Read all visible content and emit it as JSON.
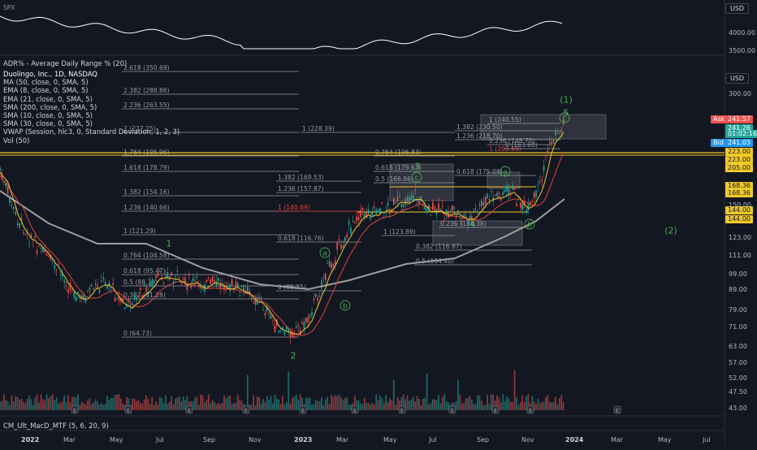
{
  "top_panel": {
    "label": "SPX",
    "currency": "USD",
    "ticks": [
      "4000.00",
      "3500.00"
    ]
  },
  "adr_label": "ADR% - Average Daily Range % (20)",
  "legend": [
    "Duolingo, Inc., 1D, NASDAQ",
    "MA (50, close, 0, SMA, 5)",
    "EMA (8, close, 0, SMA, 5)",
    "EMA (21, close, 0, SMA, 5)",
    "SMA (200, close, 0, SMA, 5)",
    "SMA (10, close, 0, SMA, 5)",
    "SMA (30, close, 0, SMA, 5)",
    "VWAP (Session, hlc3, 0, Standard Deviation, 1, 2, 3)",
    "Vol (50)"
  ],
  "macd_label": "CM_Ult_MacD_MTF (5, 6, 20, 9)",
  "currency": "USD",
  "price_tags": [
    {
      "text": "Ask",
      "value": "241.57",
      "color": "#ef5350"
    },
    {
      "text": "",
      "value": "241.26",
      "color": "#26a69a"
    },
    {
      "text": "",
      "value": "01:02:16",
      "color": "#26a69a"
    },
    {
      "text": "Bid",
      "value": "241.03",
      "color": "#2196f3"
    },
    {
      "text": "",
      "value": "223.00",
      "color": "#f0c929"
    },
    {
      "text": "",
      "value": "223.00",
      "color": "#f0c929"
    },
    {
      "text": "",
      "value": "205.00",
      "color": "#f0c929"
    },
    {
      "text": "",
      "value": "168.36",
      "color": "#f0c929"
    },
    {
      "text": "",
      "value": "168.36",
      "color": "#f0c929"
    },
    {
      "text": "",
      "value": "144.00",
      "color": "#f0c929"
    },
    {
      "text": "",
      "value": "144.00",
      "color": "#f0c929"
    }
  ],
  "chart_data": {
    "type": "candlestick",
    "title": "Duolingo, Inc., 1D, NASDAQ",
    "y_scale": "log",
    "y_ticks": [
      "300.00",
      "150.00",
      "123.00",
      "111.00",
      "99.00",
      "89.00",
      "79.00",
      "71.00",
      "63.00",
      "57.00",
      "52.00",
      "47.50",
      "43.00"
    ],
    "x_ticks": [
      "2022",
      "Mar",
      "May",
      "Jul",
      "Sep",
      "Nov",
      "2023",
      "Mar",
      "May",
      "Jul",
      "Sep",
      "Nov",
      "2024",
      "Mar",
      "May",
      "Jul"
    ],
    "horizontal_levels": [
      223.0,
      205.0,
      168.36,
      144.0
    ],
    "wave_labels": [
      "1",
      "2",
      "3",
      "4",
      "5",
      "(1)",
      "(2)",
      "a",
      "b",
      "c"
    ],
    "fib_labels": [
      "2.618 (350.69)",
      "2.382 (288.86)",
      "2.236 (263.55)",
      "2 (227.25)",
      "1.764 (195.96)",
      "1.618 (178.79)",
      "1.382 (154.16)",
      "1.236 (140.66)",
      "1 (121.29)",
      "0.764 (104.58)",
      "0.618 (95.47)",
      "0.5 (88.33)",
      "0.382 (81.28)",
      "0 (64.73)",
      "1 (228.39)",
      "0.764 (196.83)",
      "0.618 (179.63)",
      "0.5 (166.86)",
      "1.382 (169.53)",
      "1.236 (157.87)",
      "1 (140.69)",
      "0.618 (116.76)",
      "0 (85.35)",
      "1 (123.89)",
      "0.618 (175.08)",
      "0.236 (134.38)",
      "0.382 (116.87)",
      "0.5 (104.40)",
      "0.236 (148.70)",
      "1 (240.55)",
      "1.382 (230.50)",
      "1.236 (218.70)",
      "1 (200.69)",
      "0 (163.60)"
    ]
  }
}
